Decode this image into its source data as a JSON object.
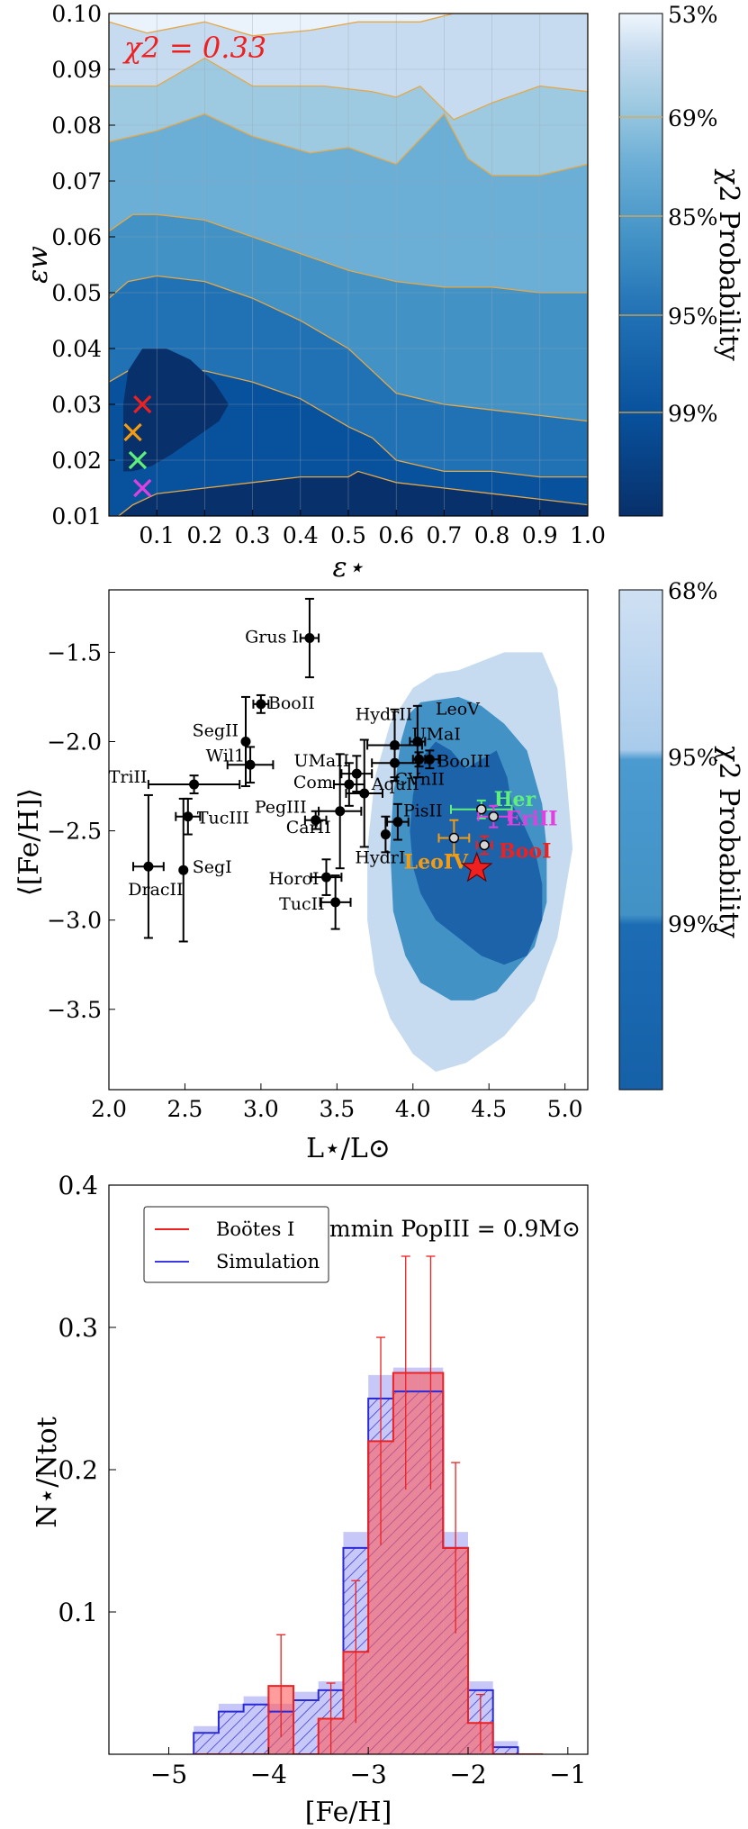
{
  "chart_data": [
    {
      "type": "contour",
      "xlabel": "ε⋆",
      "ylabel": "εw",
      "xlim": [
        0.0,
        1.0
      ],
      "ylim": [
        0.01,
        0.1
      ],
      "x_ticks": [
        "0.1",
        "0.2",
        "0.3",
        "0.4",
        "0.5",
        "0.6",
        "0.7",
        "0.8",
        "0.9",
        "1.0"
      ],
      "y_ticks": [
        "0.01",
        "0.02",
        "0.03",
        "0.04",
        "0.05",
        "0.06",
        "0.07",
        "0.08",
        "0.09",
        "0.10"
      ],
      "annotation": "χ2 = 0.33",
      "grid": true,
      "colorbar": {
        "label": "χ2 Probability",
        "ticks": [
          "53%",
          "69%",
          "85%",
          "95%",
          "99%"
        ]
      },
      "contour_levels": [
        {
          "x": [
            0.0,
            0.08,
            0.2,
            0.3,
            0.42,
            0.52,
            0.65,
            0.72,
            0.8,
            1.0,
            1.0,
            0.0
          ],
          "y": [
            0.0985,
            0.0965,
            0.0985,
            0.096,
            0.097,
            0.0985,
            0.0985,
            0.1,
            0.1,
            0.1,
            0.1,
            0.1
          ]
        },
        {
          "x": [
            0.0,
            0.1,
            0.2,
            0.3,
            0.45,
            0.55,
            0.6,
            0.65,
            0.72,
            0.8,
            0.9,
            1.0,
            1.0,
            0.0
          ],
          "y": [
            0.087,
            0.087,
            0.092,
            0.087,
            0.087,
            0.086,
            0.085,
            0.087,
            0.081,
            0.084,
            0.087,
            0.086,
            0.1,
            0.1
          ]
        },
        {
          "x": [
            0.0,
            0.1,
            0.2,
            0.3,
            0.42,
            0.5,
            0.6,
            0.7,
            0.75,
            0.8,
            0.9,
            1.0,
            1.0,
            0.0
          ],
          "y": [
            0.077,
            0.079,
            0.082,
            0.078,
            0.075,
            0.076,
            0.073,
            0.082,
            0.074,
            0.071,
            0.071,
            0.073,
            0.1,
            0.1
          ]
        },
        {
          "x": [
            0.0,
            0.05,
            0.1,
            0.2,
            0.3,
            0.4,
            0.5,
            0.6,
            0.7,
            0.8,
            0.9,
            1.0,
            1.0,
            0.0
          ],
          "y": [
            0.061,
            0.064,
            0.064,
            0.063,
            0.06,
            0.057,
            0.054,
            0.052,
            0.051,
            0.051,
            0.05,
            0.05,
            0.1,
            0.1
          ]
        },
        {
          "x": [
            0.0,
            0.04,
            0.1,
            0.2,
            0.3,
            0.4,
            0.5,
            0.55,
            0.6,
            0.7,
            0.8,
            0.9,
            1.0,
            1.0,
            0.0
          ],
          "y": [
            0.049,
            0.052,
            0.053,
            0.052,
            0.049,
            0.045,
            0.04,
            0.036,
            0.032,
            0.03,
            0.029,
            0.028,
            0.027,
            0.1,
            0.1
          ]
        },
        {
          "x": [
            0.0,
            0.04,
            0.1,
            0.2,
            0.3,
            0.4,
            0.5,
            0.55,
            0.6,
            0.7,
            0.8,
            0.9,
            1.0,
            1.0,
            0.0
          ],
          "y": [
            0.034,
            0.036,
            0.036,
            0.036,
            0.034,
            0.031,
            0.026,
            0.024,
            0.02,
            0.018,
            0.018,
            0.017,
            0.017,
            0.1,
            0.1
          ]
        },
        {
          "x": [
            0.02,
            0.05,
            0.1,
            0.2,
            0.3,
            0.4,
            0.5,
            0.52,
            0.6,
            0.7,
            0.8,
            0.9,
            1.0,
            1.0,
            0.0,
            0.0
          ],
          "y": [
            0.01,
            0.012,
            0.014,
            0.015,
            0.016,
            0.017,
            0.017,
            0.018,
            0.016,
            0.015,
            0.014,
            0.013,
            0.012,
            0.1,
            0.1,
            0.01
          ]
        }
      ],
      "inner_region": {
        "x": [
          0.03,
          0.05,
          0.09,
          0.13,
          0.18,
          0.23,
          0.25,
          0.22,
          0.17,
          0.12,
          0.07,
          0.04,
          0.03
        ],
        "y": [
          0.018,
          0.018,
          0.019,
          0.021,
          0.024,
          0.027,
          0.03,
          0.034,
          0.038,
          0.04,
          0.04,
          0.036,
          0.03
        ]
      },
      "markers": [
        {
          "x": 0.07,
          "y": 0.03,
          "color": "#ee2020"
        },
        {
          "x": 0.05,
          "y": 0.025,
          "color": "#f39c12"
        },
        {
          "x": 0.06,
          "y": 0.02,
          "color": "#5ef07a"
        },
        {
          "x": 0.07,
          "y": 0.015,
          "color": "#e040e0"
        }
      ]
    },
    {
      "type": "scatter",
      "xlabel": "L⋆/L⊙",
      "ylabel": "⟨[Fe/H]⟩",
      "xlim": [
        2.0,
        5.15
      ],
      "ylim": [
        -3.95,
        -1.15
      ],
      "x_ticks": [
        "2.0",
        "2.5",
        "3.0",
        "3.5",
        "4.0",
        "4.5",
        "5.0"
      ],
      "y_ticks": [
        "−1.5",
        "−2.0",
        "−2.5",
        "−3.0",
        "−3.5"
      ],
      "colorbar": {
        "label": "χ2 Probability",
        "ticks": [
          "68%",
          "95%",
          "99%"
        ]
      },
      "regions": [
        {
          "level": "68%",
          "x": [
            4.35,
            4.55,
            4.62,
            4.65,
            4.72,
            4.8,
            4.85,
            4.85,
            4.75,
            4.6,
            4.45,
            4.3,
            4.15,
            4.05,
            4.0,
            3.98,
            4.0,
            4.05,
            4.15,
            4.25
          ],
          "y": [
            -2.15,
            -2.05,
            -2.2,
            -2.35,
            -2.45,
            -2.6,
            -2.8,
            -3.0,
            -3.2,
            -3.25,
            -3.2,
            -3.1,
            -3.0,
            -2.85,
            -2.7,
            -2.5,
            -2.3,
            -2.1,
            -2.0,
            -2.05
          ]
        },
        {
          "level": "95%",
          "x": [
            4.05,
            4.3,
            4.45,
            4.6,
            4.75,
            4.85,
            4.88,
            4.88,
            4.8,
            4.65,
            4.55,
            4.4,
            4.25,
            4.05,
            3.95,
            3.87,
            3.85,
            3.87,
            3.92,
            3.97
          ],
          "y": [
            -1.78,
            -1.75,
            -1.8,
            -1.9,
            -2.05,
            -2.35,
            -2.6,
            -2.9,
            -3.15,
            -3.3,
            -3.4,
            -3.45,
            -3.45,
            -3.35,
            -3.2,
            -2.95,
            -2.6,
            -2.3,
            -2.0,
            -1.85
          ]
        },
        {
          "level": "99%",
          "x": [
            4.3,
            4.6,
            4.85,
            4.95,
            5.0,
            5.05,
            4.95,
            4.8,
            4.6,
            4.35,
            4.15,
            4.0,
            3.85,
            3.75,
            3.7,
            3.7,
            3.75,
            3.85,
            4.0,
            4.15
          ],
          "y": [
            -1.6,
            -1.5,
            -1.5,
            -1.7,
            -2.1,
            -2.6,
            -3.1,
            -3.45,
            -3.65,
            -3.8,
            -3.85,
            -3.75,
            -3.55,
            -3.3,
            -3.0,
            -2.6,
            -2.2,
            -1.9,
            -1.7,
            -1.62
          ]
        }
      ],
      "points": [
        {
          "name": "Grus I",
          "x": 3.32,
          "y": -1.42,
          "xerr": 0.06,
          "yerr": 0.22,
          "color": "#000000"
        },
        {
          "name": "BooII",
          "x": 3.0,
          "y": -1.79,
          "xerr": 0.05,
          "yerr": 0.05,
          "color": "#000000"
        },
        {
          "name": "SegII",
          "x": 2.9,
          "y": -2.0,
          "xerr": 0.0,
          "yerr": 0.25,
          "color": "#000000"
        },
        {
          "name": "Wil1",
          "x": 2.93,
          "y": -2.13,
          "xerr": 0.15,
          "yerr": 0.1,
          "color": "#000000"
        },
        {
          "name": "TriII",
          "x": 2.56,
          "y": -2.24,
          "xerr": 0.3,
          "yerr": 0.05,
          "color": "#000000"
        },
        {
          "name": "TucIII",
          "x": 2.52,
          "y": -2.42,
          "xerr": 0.08,
          "yerr": 0.1,
          "color": "#000000"
        },
        {
          "name": "DracII",
          "x": 2.26,
          "y": -2.7,
          "xerr": 0.1,
          "yerr": 0.4,
          "color": "#000000"
        },
        {
          "name": "SegI",
          "x": 2.49,
          "y": -2.72,
          "xerr": 0.0,
          "yerr": 0.4,
          "color": "#000000"
        },
        {
          "name": "UMaII",
          "x": 3.63,
          "y": -2.18,
          "xerr": 0.1,
          "yerr": 0.1,
          "color": "#000000"
        },
        {
          "name": "Com",
          "x": 3.58,
          "y": -2.24,
          "xerr": 0.1,
          "yerr": 0.12,
          "color": "#000000"
        },
        {
          "name": "PegIII",
          "x": 3.36,
          "y": -2.44,
          "xerr": 0.07,
          "yerr": 0.05,
          "color": "#000000"
        },
        {
          "name": "CarII",
          "x": 3.52,
          "y": -2.39,
          "xerr": 0.14,
          "yerr": 0.32,
          "color": "#000000"
        },
        {
          "name": "HydrII",
          "x": 3.88,
          "y": -2.02,
          "xerr": 0.18,
          "yerr": 0.2,
          "color": "#000000"
        },
        {
          "name": "LeoV",
          "x": 4.03,
          "y": -2.0,
          "xerr": 0.05,
          "yerr": 0.2,
          "color": "#000000"
        },
        {
          "name": "UMaI",
          "x": 4.04,
          "y": -2.1,
          "xerr": 0.04,
          "yerr": 0.04,
          "color": "#000000"
        },
        {
          "name": "BooIII",
          "x": 4.11,
          "y": -2.1,
          "xerr": 0.06,
          "yerr": 0.05,
          "color": "#000000"
        },
        {
          "name": "CVnII",
          "x": 3.88,
          "y": -2.12,
          "xerr": 0.15,
          "yerr": 0.08,
          "color": "#000000"
        },
        {
          "name": "AquII",
          "x": 3.68,
          "y": -2.29,
          "xerr": 0.12,
          "yerr": 0.3,
          "color": "#000000"
        },
        {
          "name": "PisII",
          "x": 3.9,
          "y": -2.45,
          "xerr": 0.07,
          "yerr": 0.1,
          "color": "#000000"
        },
        {
          "name": "HydrI",
          "x": 3.82,
          "y": -2.52,
          "xerr": 0.0,
          "yerr": 0.1,
          "color": "#000000"
        },
        {
          "name": "HoroI",
          "x": 3.43,
          "y": -2.76,
          "xerr": 0.1,
          "yerr": 0.1,
          "color": "#000000"
        },
        {
          "name": "TucII",
          "x": 3.49,
          "y": -2.9,
          "xerr": 0.1,
          "yerr": 0.15,
          "color": "#000000"
        },
        {
          "name": "Her",
          "x": 4.45,
          "y": -2.38,
          "xerr": 0.2,
          "yerr": 0.05,
          "color": "#5ef07a"
        },
        {
          "name": "EriII",
          "x": 4.53,
          "y": -2.42,
          "xerr": 0.1,
          "yerr": 0.06,
          "color": "#e040e0"
        },
        {
          "name": "LeoIV",
          "x": 4.27,
          "y": -2.54,
          "xerr": 0.1,
          "yerr": 0.1,
          "color": "#f39c12"
        },
        {
          "name": "BooI",
          "x": 4.47,
          "y": -2.58,
          "xerr": 0.05,
          "yerr": 0.05,
          "color": "#ee2020"
        }
      ],
      "star": {
        "x": 4.42,
        "y": -2.71,
        "color": "#ee2020"
      }
    },
    {
      "type": "histogram",
      "xlabel": "[Fe/H]",
      "ylabel": "N⋆/Ntot",
      "xlim": [
        -5.6,
        -0.8
      ],
      "ylim": [
        0.0,
        0.4
      ],
      "x_ticks": [
        "−5",
        "−4",
        "−3",
        "−2",
        "−1"
      ],
      "y_ticks": [
        "0.1",
        "0.2",
        "0.3",
        "0.4"
      ],
      "annotation": "mmin PopIII = 0.9M⊙",
      "legend": {
        "position": "top-left",
        "entries": [
          "Boötes I",
          "Simulation"
        ]
      },
      "bin_edges": [
        -4.75,
        -4.5,
        -4.25,
        -4.0,
        -3.75,
        -3.5,
        -3.25,
        -3.0,
        -2.75,
        -2.5,
        -2.25,
        -2.0,
        -1.75,
        -1.5,
        -1.25
      ],
      "series": [
        {
          "name": "Boötes I",
          "color": "#ee2020",
          "values": [
            0,
            0,
            0,
            0.048,
            0.0,
            0.025,
            0.072,
            0.22,
            0.268,
            0.268,
            0.145,
            0.022,
            0,
            0,
            0
          ],
          "yerr": [
            0,
            0,
            0,
            0.036,
            0.0,
            0.025,
            0.05,
            0.073,
            0.082,
            0.082,
            0.06,
            0.02,
            0,
            0,
            0
          ]
        },
        {
          "name": "Simulation",
          "color": "#3a3ae0",
          "values": [
            0.015,
            0.03,
            0.035,
            0.03,
            0.038,
            0.045,
            0.145,
            0.25,
            0.255,
            0.255,
            0.145,
            0.045,
            0.005,
            0,
            0
          ]
        }
      ]
    }
  ]
}
